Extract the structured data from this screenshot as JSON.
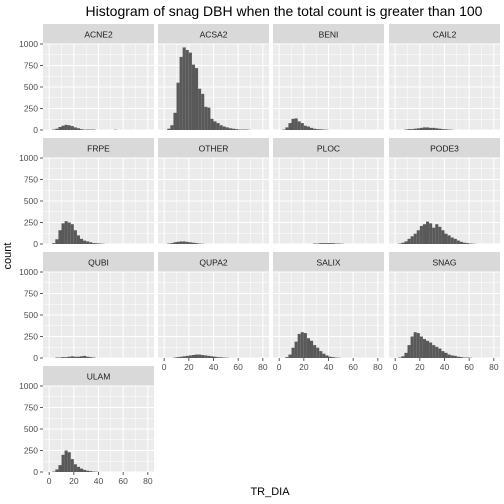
{
  "chart_data": {
    "type": "bar",
    "subtype": "faceted-histogram",
    "title": "Histogram of snag DBH when the total count is greater than 100",
    "xlabel": "TR_DIA",
    "ylabel": "count",
    "xlim": [
      -5,
      85
    ],
    "ylim": [
      0,
      1000
    ],
    "x_ticks": [
      "0",
      "20",
      "40",
      "60",
      "80"
    ],
    "y_ticks": [
      "0",
      "250",
      "500",
      "750",
      "1000"
    ],
    "bin_width": 2.5,
    "bins_start": 0,
    "bar_color": "#595959",
    "panel_background": "#ebebeb",
    "strip_background": "#d9d9d9",
    "panels": [
      {
        "name": "ACNE2",
        "values": [
          0,
          5,
          15,
          35,
          50,
          60,
          55,
          45,
          30,
          20,
          10,
          5,
          5,
          5,
          5,
          0,
          0,
          0,
          0,
          0,
          0,
          3,
          0,
          0,
          0,
          0,
          0,
          0
        ]
      },
      {
        "name": "ACSA2",
        "values": [
          0,
          15,
          55,
          200,
          550,
          850,
          960,
          930,
          900,
          760,
          720,
          480,
          420,
          270,
          260,
          130,
          100,
          80,
          55,
          40,
          30,
          20,
          15,
          10,
          5,
          5,
          5,
          3
        ]
      },
      {
        "name": "BENI",
        "values": [
          0,
          5,
          30,
          80,
          130,
          135,
          100,
          80,
          50,
          40,
          25,
          15,
          10,
          8,
          5,
          3,
          0,
          0,
          0,
          0,
          0,
          0,
          0,
          0,
          0,
          0,
          0,
          0
        ]
      },
      {
        "name": "CAIL2",
        "values": [
          0,
          0,
          0,
          5,
          10,
          10,
          15,
          20,
          25,
          30,
          30,
          25,
          25,
          20,
          15,
          10,
          8,
          5,
          3,
          0,
          0,
          0,
          0,
          0,
          0,
          0,
          0,
          0
        ]
      },
      {
        "name": "FRPE",
        "values": [
          0,
          10,
          55,
          160,
          240,
          265,
          250,
          230,
          160,
          100,
          60,
          40,
          30,
          20,
          10,
          8,
          5,
          3,
          0,
          0,
          0,
          0,
          0,
          0,
          0,
          0,
          0,
          0
        ]
      },
      {
        "name": "OTHER",
        "values": [
          0,
          5,
          10,
          20,
          25,
          30,
          30,
          25,
          20,
          15,
          10,
          5,
          3,
          0,
          0,
          0,
          0,
          0,
          0,
          0,
          0,
          0,
          0,
          0,
          0,
          0,
          0,
          0
        ]
      },
      {
        "name": "PLOC",
        "values": [
          0,
          0,
          0,
          0,
          0,
          0,
          0,
          0,
          0,
          0,
          0,
          5,
          5,
          10,
          10,
          10,
          10,
          10,
          5,
          5,
          3,
          0,
          0,
          0,
          0,
          0,
          0,
          0
        ]
      },
      {
        "name": "PODE3",
        "values": [
          0,
          5,
          15,
          30,
          60,
          90,
          120,
          160,
          210,
          230,
          260,
          240,
          190,
          230,
          200,
          160,
          120,
          100,
          75,
          60,
          40,
          25,
          15,
          10,
          5,
          3,
          0,
          0
        ]
      },
      {
        "name": "QUBI",
        "values": [
          0,
          0,
          5,
          5,
          10,
          10,
          15,
          20,
          15,
          15,
          20,
          25,
          15,
          10,
          5,
          0,
          0,
          0,
          0,
          0,
          0,
          0,
          0,
          0,
          0,
          0,
          0,
          0
        ]
      },
      {
        "name": "QUPA2",
        "values": [
          0,
          0,
          0,
          5,
          10,
          15,
          20,
          25,
          30,
          35,
          40,
          40,
          35,
          30,
          25,
          20,
          15,
          10,
          8,
          5,
          3,
          0,
          0,
          0,
          0,
          0,
          0,
          0
        ]
      },
      {
        "name": "SALIX",
        "values": [
          0,
          0,
          10,
          40,
          120,
          190,
          280,
          300,
          290,
          230,
          200,
          150,
          120,
          80,
          50,
          30,
          15,
          10,
          5,
          3,
          0,
          0,
          0,
          0,
          0,
          0,
          0,
          0
        ]
      },
      {
        "name": "SNAG",
        "values": [
          0,
          5,
          20,
          60,
          150,
          250,
          300,
          290,
          250,
          220,
          200,
          180,
          150,
          130,
          110,
          80,
          60,
          40,
          30,
          25,
          15,
          10,
          5,
          5,
          3,
          0,
          0,
          0
        ]
      },
      {
        "name": "ULAM",
        "values": [
          0,
          5,
          30,
          80,
          200,
          250,
          230,
          150,
          90,
          60,
          40,
          25,
          15,
          10,
          5,
          3,
          0,
          0,
          0,
          0,
          0,
          0,
          0,
          0,
          0,
          0,
          0,
          0
        ]
      }
    ]
  }
}
